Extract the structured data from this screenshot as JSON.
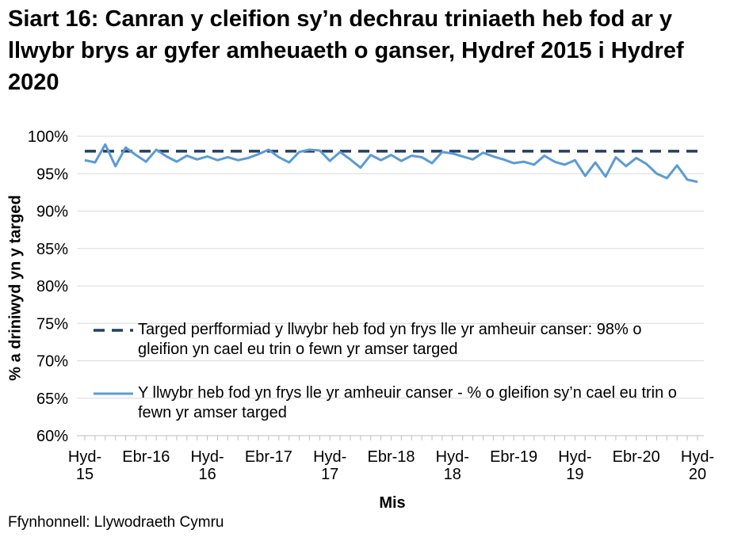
{
  "chart_data": {
    "type": "line",
    "title": "Siart 16: Canran y cleifion sy’n dechrau triniaeth heb fod ar y llwybr brys ar gyfer amheuaeth o ganser, Hydref 2015 i Hydref 2020",
    "x_label": "Mis",
    "y_label": "% a driniwyd yn y targed",
    "source": "Ffynhonnell: Llywodraeth Cymru",
    "categories": [
      "Hyd-15",
      null,
      null,
      null,
      null,
      null,
      "Ebr-16",
      null,
      null,
      null,
      null,
      null,
      "Hyd-16",
      null,
      null,
      null,
      null,
      null,
      "Ebr-17",
      null,
      null,
      null,
      null,
      null,
      "Hyd-17",
      null,
      null,
      null,
      null,
      null,
      "Ebr-18",
      null,
      null,
      null,
      null,
      null,
      "Hyd-18",
      null,
      null,
      null,
      null,
      null,
      "Ebr-19",
      null,
      null,
      null,
      null,
      null,
      "Hyd-19",
      null,
      null,
      null,
      null,
      null,
      "Ebr-20",
      null,
      null,
      null,
      null,
      null,
      "Hyd-20"
    ],
    "series": [
      {
        "name": "Targed perfformiad y llwybr heb fod yn frys lle yr amheuir canser: 98% o gleifion yn cael eu trin o fewn yr amser targed",
        "color": "#243f60",
        "dashed": true,
        "values": [
          98,
          98,
          98,
          98,
          98,
          98,
          98,
          98,
          98,
          98,
          98,
          98,
          98,
          98,
          98,
          98,
          98,
          98,
          98,
          98,
          98,
          98,
          98,
          98,
          98,
          98,
          98,
          98,
          98,
          98,
          98,
          98,
          98,
          98,
          98,
          98,
          98,
          98,
          98,
          98,
          98,
          98,
          98,
          98,
          98,
          98,
          98,
          98,
          98,
          98,
          98,
          98,
          98,
          98,
          98,
          98,
          98,
          98,
          98,
          98,
          98
        ]
      },
      {
        "name": "Y llwybr heb fod yn frys lle yr amheuir canser - % o gleifion sy’n cael eu trin o fewn yr amser targed",
        "color": "#5b9bd5",
        "dashed": false,
        "values": [
          96.8,
          96.5,
          98.9,
          96.0,
          98.5,
          97.5,
          96.6,
          98.2,
          97.3,
          96.6,
          97.4,
          96.9,
          97.3,
          96.8,
          97.2,
          96.8,
          97.1,
          97.6,
          98.2,
          97.2,
          96.5,
          97.9,
          98.2,
          98.1,
          96.7,
          97.9,
          96.9,
          95.8,
          97.5,
          96.8,
          97.5,
          96.7,
          97.4,
          97.2,
          96.4,
          97.9,
          97.7,
          97.3,
          96.9,
          97.8,
          97.3,
          96.9,
          96.4,
          96.6,
          96.2,
          97.4,
          96.6,
          96.2,
          96.8,
          94.7,
          96.5,
          94.6,
          97.2,
          96.0,
          97.1,
          96.3,
          95.0,
          94.4,
          96.1,
          94.2,
          93.9
        ]
      }
    ],
    "ylim": [
      60,
      100
    ],
    "yticks": [
      {
        "value": 60,
        "label": "60%"
      },
      {
        "value": 65,
        "label": "65%"
      },
      {
        "value": 70,
        "label": "70%"
      },
      {
        "value": 75,
        "label": "75%"
      },
      {
        "value": 80,
        "label": "80%"
      },
      {
        "value": 85,
        "label": "85%"
      },
      {
        "value": 90,
        "label": "90%"
      },
      {
        "value": 95,
        "label": "95%"
      },
      {
        "value": 100,
        "label": "100%"
      }
    ],
    "grid": true
  }
}
